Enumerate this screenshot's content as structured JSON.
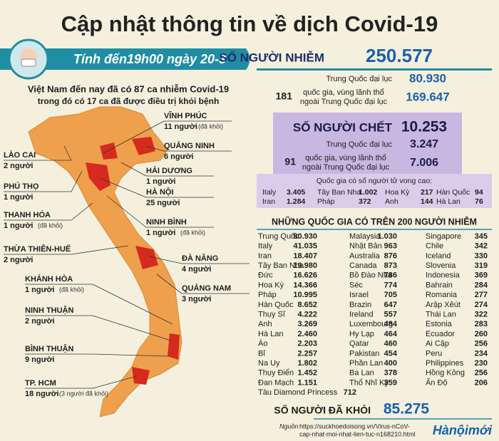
{
  "title": "Cập nhật thông tin về dịch Covid-19",
  "banner": "Tính đến19h00 ngày 20-3",
  "vietnam": {
    "line1": "Việt Nam đến nay đã có 87 ca nhiễm Covid-19",
    "line2": "trong đó có 17 ca đã được điều trị khỏi bệnh",
    "provinces": [
      {
        "name": "VĨNH PHÚC",
        "cases": "11 người",
        "note": "(đã khỏi)"
      },
      {
        "name": "LÀO CAI",
        "cases": "2 người"
      },
      {
        "name": "QUẢNG NINH",
        "cases": "6 người"
      },
      {
        "name": "HẢI DƯƠNG",
        "cases": "1 người"
      },
      {
        "name": "PHÚ THỌ",
        "cases": "1 người"
      },
      {
        "name": "HÀ NỘI",
        "cases": "25 người"
      },
      {
        "name": "THANH HÓA",
        "cases": "1 người",
        "note": "(đã khỏi)"
      },
      {
        "name": "NINH BÌNH",
        "cases": "1 người",
        "note": "(đã khỏi)"
      },
      {
        "name": "THỪA THIÊN-HUẾ",
        "cases": "2 người"
      },
      {
        "name": "ĐÀ NẴNG",
        "cases": "4 người"
      },
      {
        "name": "KHÁNH HÒA",
        "cases": "1 người",
        "note": "(đã khỏi)"
      },
      {
        "name": "QUẢNG NAM",
        "cases": "3 người"
      },
      {
        "name": "NINH THUẬN",
        "cases": "2 người"
      },
      {
        "name": "BÌNH THUẬN",
        "cases": "9 người"
      },
      {
        "name": "TP. HCM",
        "cases": "18 người",
        "note": "(3 người đã khỏi)"
      }
    ]
  },
  "infected": {
    "label": "SỐ NGƯỜI NHIỄM",
    "total": "250.577",
    "china_label": "Trung Quốc đại lục",
    "china_value": "80.930",
    "other_count": "181",
    "other_label": [
      "quốc gia, vùng lãnh thổ",
      "ngoài Trung Quốc đại lục"
    ],
    "other_value": "169.647"
  },
  "deaths": {
    "label": "SỐ NGƯỜI CHẾT",
    "total": "10.253",
    "china_label": "Trung Quốc đại lục",
    "china_value": "3.247",
    "other_count": "91",
    "other_label": [
      "quốc gia, vùng lãnh thổ",
      "ngoài Trung Quốc đại lục"
    ],
    "other_value": "7.006",
    "high_title": "Quốc gia có số người tử vong cao:",
    "high": [
      [
        "Italy",
        "3.405"
      ],
      [
        "Tây Ban Nha",
        "1.002"
      ],
      [
        "Hoa Kỳ",
        "217"
      ],
      [
        "Hàn Quốc",
        "94"
      ],
      [
        "Iran",
        "1.284"
      ],
      [
        "Pháp",
        "372"
      ],
      [
        "Anh",
        "144"
      ],
      [
        "Hà Lan",
        "76"
      ]
    ]
  },
  "table": {
    "title": "NHỮNG QUỐC GIA CÓ TRÊN 200 NGƯỜI NHIỄM",
    "columns": [
      [
        [
          "Trung Quốc",
          "80.930"
        ],
        [
          "Italy",
          "41.035"
        ],
        [
          "Iran",
          "18.407"
        ],
        [
          "Tây Ban Nha",
          "19.980"
        ],
        [
          "Đức",
          "16.626"
        ],
        [
          "Hoa Kỳ",
          "14.366"
        ],
        [
          "Pháp",
          "10.995"
        ],
        [
          "Hàn Quốc",
          "8.652"
        ],
        [
          "Thụy Sĩ",
          "4.222"
        ],
        [
          "Anh",
          "3.269"
        ],
        [
          "Hà Lan",
          "2.460"
        ],
        [
          "Áo",
          "2.203"
        ],
        [
          "Bỉ",
          "2.257"
        ],
        [
          "Na Uy",
          "1.802"
        ],
        [
          "Thụy Điển",
          "1.452"
        ],
        [
          "Đan Mạch",
          "1.151"
        ],
        [
          "Tàu Diamond Princess",
          "712"
        ]
      ],
      [
        [
          "Malaysia",
          "1.030"
        ],
        [
          "Nhật Bản",
          "963"
        ],
        [
          "Australia",
          "876"
        ],
        [
          "Canada",
          "873"
        ],
        [
          "Bồ Đào Nha",
          "786"
        ],
        [
          "Séc",
          "774"
        ],
        [
          "Israel",
          "705"
        ],
        [
          "Brazin",
          "647"
        ],
        [
          "Ireland",
          "557"
        ],
        [
          "Luxembourg",
          "484"
        ],
        [
          "Hy Lạp",
          "464"
        ],
        [
          "Qatar",
          "460"
        ],
        [
          "Pakistan",
          "454"
        ],
        [
          "Phần Lan",
          "400"
        ],
        [
          "Ba Lan",
          "378"
        ],
        [
          "Thổ Nhĩ Kỳ",
          "359"
        ]
      ],
      [
        [
          "Singapore",
          "345"
        ],
        [
          "Chile",
          "342"
        ],
        [
          "Iceland",
          "330"
        ],
        [
          "Slovenia",
          "319"
        ],
        [
          "Indonesia",
          "369"
        ],
        [
          "Bahrain",
          "284"
        ],
        [
          "Romania",
          "277"
        ],
        [
          "Arập Xêút",
          "274"
        ],
        [
          "Thái Lan",
          "322"
        ],
        [
          "Estonia",
          "283"
        ],
        [
          "Ecuador",
          "260"
        ],
        [
          "Ai Cập",
          "256"
        ],
        [
          "Peru",
          "234"
        ],
        [
          "Philippines",
          "230"
        ],
        [
          "Hồng Kông",
          "256"
        ],
        [
          "Ấn Độ",
          "206"
        ]
      ]
    ]
  },
  "recovered": {
    "label": "SỐ NGƯỜI ĐÃ KHỎI",
    "total": "85.275"
  },
  "source": {
    "label": "Nguồn",
    "url": [
      "https://suckhoedoisong.vn/Virus-nCoV-",
      "cap-nhat-moi-nhat-lien-tuc-n168210.html"
    ]
  },
  "logo": "Hànộimới"
}
